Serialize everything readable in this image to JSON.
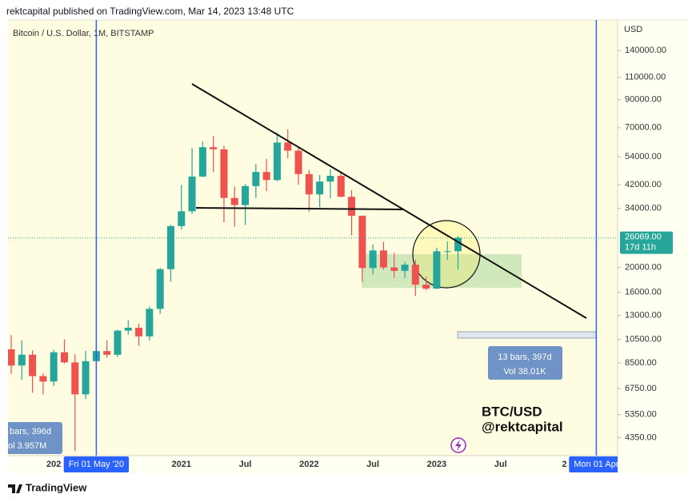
{
  "header": {
    "text": "rektcapital published on TradingView.com, Mar 14, 2023 13:48 UTC"
  },
  "footer": {
    "brand": "TradingView"
  },
  "chart_data": {
    "type": "candlestick",
    "title": "Bitcoin / U.S. Dollar, 1M, BITSTAMP",
    "y_axis_label": "USD",
    "log_scale": true,
    "up_color": "#26a69a",
    "down_color": "#ef5350",
    "categories": [
      "2019-09",
      "2019-10",
      "2019-11",
      "2019-12",
      "2020-01",
      "2020-02",
      "2020-03",
      "2020-04",
      "2020-05",
      "2020-06",
      "2020-07",
      "2020-08",
      "2020-09",
      "2020-10",
      "2020-11",
      "2020-12",
      "2021-01",
      "2021-02",
      "2021-03",
      "2021-04",
      "2021-05",
      "2021-06",
      "2021-07",
      "2021-08",
      "2021-09",
      "2021-10",
      "2021-11",
      "2021-12",
      "2022-01",
      "2022-02",
      "2022-03",
      "2022-04",
      "2022-05",
      "2022-06",
      "2022-07",
      "2022-08",
      "2022-09",
      "2022-10",
      "2022-11",
      "2022-12",
      "2023-01",
      "2023-02",
      "2023-03"
    ],
    "open": [
      9600,
      8300,
      9150,
      7550,
      7190,
      9350,
      8540,
      6410,
      8630,
      9450,
      9140,
      11350,
      11650,
      10780,
      13800,
      19700,
      28990,
      33100,
      45200,
      58800,
      57700,
      37300,
      35000,
      41500,
      47100,
      43800,
      61300,
      57000,
      46200,
      38500,
      43200,
      45500,
      37700,
      31800,
      19900,
      23300,
      20000,
      19400,
      20500,
      17150,
      16540,
      23130,
      23140
    ],
    "high": [
      10900,
      10400,
      9500,
      7750,
      9580,
      10500,
      9180,
      9470,
      10080,
      10400,
      11450,
      12480,
      12070,
      14100,
      19900,
      29300,
      41950,
      58350,
      61800,
      64900,
      59600,
      41300,
      42300,
      50500,
      52900,
      67000,
      69000,
      59100,
      47900,
      45800,
      48200,
      47400,
      40000,
      31900,
      24600,
      25200,
      22800,
      21000,
      21450,
      18400,
      23900,
      25250,
      26500
    ],
    "low": [
      7700,
      7300,
      6500,
      6400,
      6900,
      8450,
      3850,
      6150,
      8100,
      8900,
      8950,
      10950,
      9900,
      10400,
      13200,
      17600,
      28100,
      32300,
      44900,
      47000,
      30000,
      28800,
      29300,
      37300,
      39600,
      43300,
      53300,
      42000,
      32900,
      34300,
      37200,
      37600,
      26700,
      17600,
      18800,
      19600,
      18200,
      18200,
      15500,
      16300,
      16500,
      21400,
      19600
    ],
    "close": [
      8300,
      9150,
      7550,
      7190,
      9350,
      8540,
      6410,
      8630,
      9450,
      9140,
      11350,
      11650,
      10780,
      13800,
      19700,
      28990,
      33100,
      45200,
      58800,
      57700,
      37300,
      35000,
      41500,
      47100,
      43800,
      61300,
      57000,
      46200,
      38500,
      43200,
      45500,
      37700,
      31800,
      19900,
      23300,
      20000,
      19400,
      20500,
      17150,
      16540,
      23130,
      23140,
      26069
    ],
    "xlim": [
      "2019-09",
      "2024-06"
    ],
    "xticks": [
      {
        "value": "2020-01",
        "label": "202"
      },
      {
        "value": "2021-01",
        "label": "2021"
      },
      {
        "value": "2021-07",
        "label": "Jul"
      },
      {
        "value": "2022-01",
        "label": "2022"
      },
      {
        "value": "2022-07",
        "label": "Jul"
      },
      {
        "value": "2023-01",
        "label": "2023"
      },
      {
        "value": "2023-07",
        "label": "Jul"
      },
      {
        "value": "2024-01",
        "label": "2"
      }
    ],
    "ylim": [
      3700,
      184000
    ],
    "yticks": [
      {
        "value": 140000,
        "label": "140000.00"
      },
      {
        "value": 110000,
        "label": "110000.00"
      },
      {
        "value": 90000,
        "label": "90000.00"
      },
      {
        "value": 70000,
        "label": "70000.00"
      },
      {
        "value": 54000,
        "label": "54000.00"
      },
      {
        "value": 42000,
        "label": "42000.00"
      },
      {
        "value": 34000,
        "label": "34000.00"
      },
      {
        "value": 20000,
        "label": "20000.00"
      },
      {
        "value": 16000,
        "label": "16000.00"
      },
      {
        "value": 13000,
        "label": "13000.00"
      },
      {
        "value": 10500,
        "label": "10500.00"
      },
      {
        "value": 8500,
        "label": "8500.00"
      },
      {
        "value": 6750,
        "label": "6750.00"
      },
      {
        "value": 5350,
        "label": "5350.00"
      },
      {
        "value": 4350,
        "label": "4350.00"
      }
    ],
    "last_price": {
      "value": 26069,
      "label": "26069.00",
      "countdown": "17d 11h"
    },
    "cursor_markers": [
      {
        "x": "2020-05",
        "label": "Fri 01 May '20"
      },
      {
        "x": "2024-04",
        "label": "Mon 01 Apr"
      }
    ],
    "annotations": {
      "range_right": [
        "13 bars, 397d",
        "Vol 38.01K"
      ],
      "range_left": [
        "bars, 396d",
        "ol 3.957M"
      ],
      "watermark": [
        "BTC/USD",
        "@rektcapital"
      ]
    }
  }
}
